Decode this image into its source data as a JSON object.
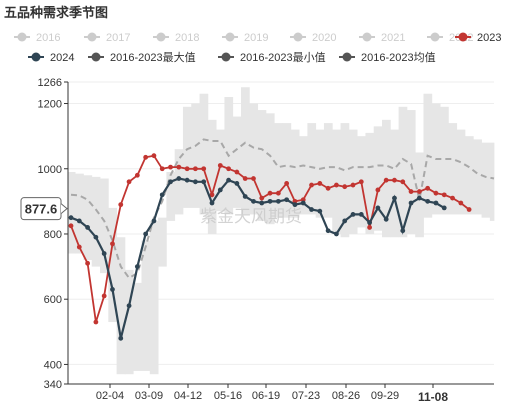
{
  "chart_data": {
    "type": "line",
    "title": "五品种需求季节图",
    "watermark": "紫金天风期货",
    "y_axis": {
      "ticks": [
        340,
        400,
        600,
        800,
        1000,
        1200,
        1266
      ],
      "ylim": [
        340,
        1266
      ]
    },
    "x_tick_labels": [
      "02-04",
      "03-09",
      "04-12",
      "05-16",
      "06-19",
      "07-23",
      "08-26",
      "09-29",
      "11-08"
    ],
    "highlighted_x_tick": "11-08",
    "pointer_tag": "877.6",
    "pointer_value": 877.6,
    "colors": {
      "grid": "#eeeeee",
      "band": "#e6e6e6",
      "avg": "#a8a8a8",
      "series_2023": "#c23531",
      "series_2024": "#2f4554",
      "inactive": "#cccccc",
      "dark_legend": "#555555"
    },
    "legend": [
      {
        "name": "2016",
        "active": false
      },
      {
        "name": "2017",
        "active": false
      },
      {
        "name": "2018",
        "active": false
      },
      {
        "name": "2019",
        "active": false
      },
      {
        "name": "2020",
        "active": false
      },
      {
        "name": "2021",
        "active": false
      },
      {
        "name": "2022",
        "active": false
      },
      {
        "name": "2023",
        "active": true
      },
      {
        "name": "2024",
        "active": true
      },
      {
        "name": "2016-2023最大值",
        "active": true
      },
      {
        "name": "2016-2023最小值",
        "active": true
      },
      {
        "name": "2016-2023均值",
        "active": true
      }
    ],
    "weeks": 52,
    "series": {
      "max": [
        990,
        985,
        980,
        975,
        970,
        880,
        790,
        690,
        650,
        780,
        840,
        850,
        990,
        1060,
        1190,
        1200,
        1230,
        1150,
        1120,
        1220,
        1160,
        1250,
        1200,
        1180,
        1170,
        1140,
        1140,
        1120,
        1100,
        1140,
        1120,
        1140,
        1120,
        1140,
        1120,
        1100,
        1110,
        1130,
        1150,
        1120,
        1190,
        1180,
        1050,
        1230,
        1200,
        1190,
        1140,
        1120,
        1100,
        1090,
        1080,
        1080
      ],
      "min": [
        740,
        740,
        720,
        700,
        680,
        530,
        370,
        370,
        380,
        380,
        370,
        700,
        840,
        860,
        880,
        880,
        860,
        800,
        870,
        860,
        880,
        860,
        860,
        840,
        830,
        850,
        850,
        850,
        860,
        860,
        850,
        850,
        800,
        790,
        800,
        820,
        800,
        810,
        790,
        790,
        790,
        800,
        790,
        850,
        860,
        860,
        860,
        860,
        860,
        860,
        850,
        840
      ],
      "avg": [
        920,
        918,
        905,
        875,
        840,
        780,
        700,
        665,
        680,
        760,
        850,
        900,
        980,
        1030,
        1060,
        1070,
        1090,
        1085,
        1085,
        1040,
        1060,
        1080,
        1065,
        1060,
        1040,
        1005,
        1010,
        1005,
        1010,
        1005,
        1000,
        1005,
        1005,
        995,
        1005,
        1005,
        1005,
        1010,
        1010,
        1000,
        1030,
        1015,
        905,
        1040,
        1030,
        1030,
        1030,
        1020,
        1005,
        985,
        975,
        970
      ],
      "s2023": [
        825,
        760,
        710,
        530,
        610,
        770,
        890,
        960,
        980,
        1035,
        1040,
        1000,
        1005,
        1005,
        1000,
        1000,
        1000,
        920,
        1010,
        1000,
        990,
        970,
        970,
        910,
        925,
        925,
        955,
        900,
        905,
        950,
        955,
        940,
        950,
        945,
        950,
        960,
        820,
        935,
        965,
        965,
        960,
        930,
        930,
        940,
        925,
        920,
        910,
        895,
        875
      ],
      "s2024": [
        850,
        840,
        820,
        790,
        740,
        630,
        480,
        580,
        700,
        800,
        840,
        920,
        960,
        970,
        965,
        960,
        960,
        895,
        935,
        965,
        955,
        915,
        900,
        895,
        900,
        900,
        905,
        890,
        895,
        875,
        870,
        810,
        800,
        840,
        860,
        860,
        835,
        880,
        845,
        910,
        810,
        895,
        910,
        900,
        895,
        880
      ]
    }
  }
}
